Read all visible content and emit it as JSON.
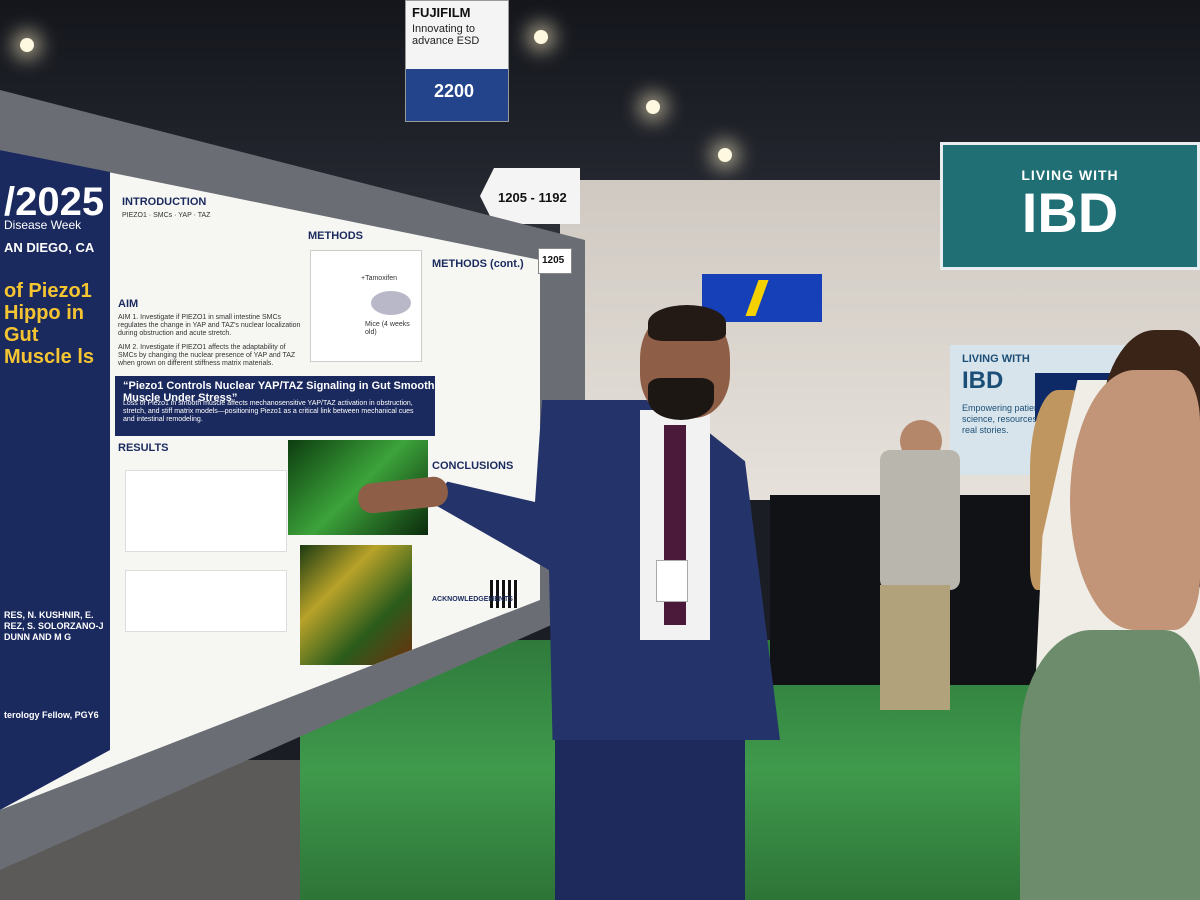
{
  "signs": {
    "sponsor_brand": "FUJIFILM",
    "sponsor_tagline": "Innovating to advance ESD",
    "sponsor_booth": "2200",
    "aisle_range": "1205 - 1192",
    "board_number": "1205"
  },
  "poster": {
    "year": "/2025",
    "event": "Disease Week",
    "location": "AN DIEGO, CA",
    "title_fragment": "of Piezo1 Hippo in Gut Muscle ls",
    "authors_fragment": "RES, N. KUSHNIR, E. REZ, S. SOLORZANO-J DUNN AND M G",
    "role_fragment": "terology Fellow, PGY6",
    "sections": {
      "introduction": "INTRODUCTION",
      "methods": "METHODS",
      "methods_cont": "METHODS (cont.)",
      "aim": "AIM",
      "results": "RESULTS",
      "conclusions": "CONCLUSIONS",
      "acknowledgements": "ACKNOWLEDGEMENTS"
    },
    "aim1": "AIM 1. Investigate if PIEZO1 in small intestine SMCs regulates the change in YAP and TAZ's nuclear localization during obstruction and acute stretch.",
    "aim2": "AIM 2. Investigate if PIEZO1 affects the adaptability of SMCs by changing the nuclear presence of YAP and TAZ when grown on different stiffness matrix materials.",
    "highlight_title": "“Piezo1 Controls Nuclear YAP/TAZ Signaling in Gut Smooth Muscle Under Stress”",
    "highlight_body": "Loss of Piezo1 in smooth muscle affects mechanosensitive YAP/TAZ activation in obstruction, stretch, and stiff matrix models—positioning Piezo1 as a critical link between mechanical cues and intestinal remodeling.",
    "diagram_label": "Mice (4 weeks old)",
    "diagram_drug": "+Tamoxifen"
  },
  "booth": {
    "header_line1": "LIVING WITH",
    "header_line2": "IBD",
    "panel_line1": "LIVING WITH",
    "panel_line2": "IBD",
    "panel_text": "Empowering patients with science, resources, and real stories."
  },
  "colors": {
    "poster_navy": "#1b2a5e",
    "poster_gold": "#f4c531",
    "carpet_green": "#3f9a4c",
    "ibd_teal": "#1f6f74"
  }
}
